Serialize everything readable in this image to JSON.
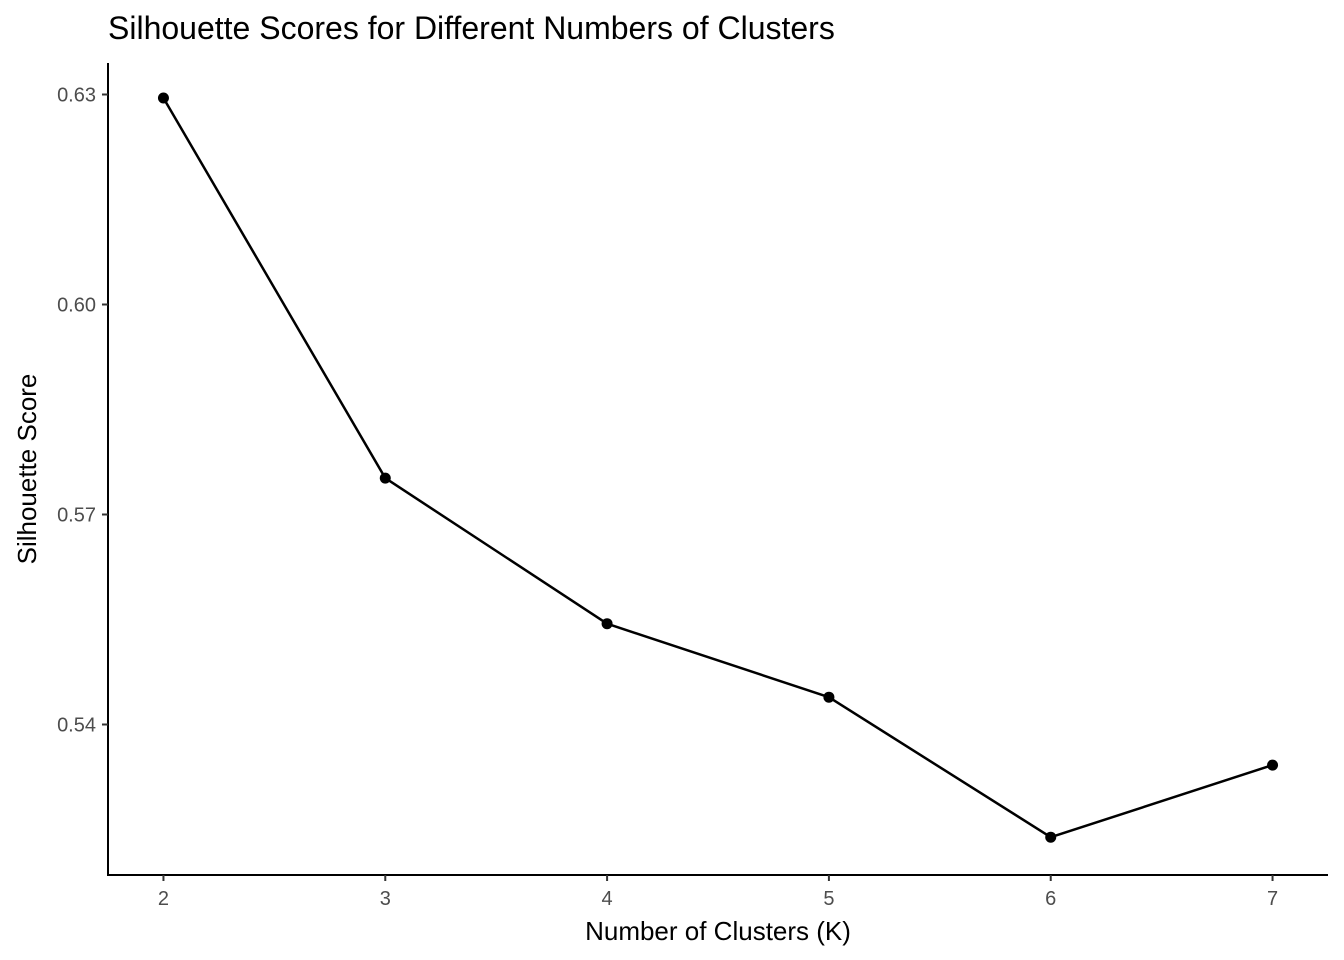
{
  "chart_data": {
    "type": "line",
    "title": "Silhouette Scores for Different Numbers of Clusters",
    "xlabel": "Number of Clusters (K)",
    "ylabel": "Silhouette Score",
    "x": [
      2,
      3,
      4,
      5,
      6,
      7
    ],
    "values": [
      0.6295,
      0.5752,
      0.5544,
      0.5439,
      0.5239,
      0.5342
    ],
    "x_ticks": [
      "2",
      "3",
      "4",
      "5",
      "6",
      "7"
    ],
    "y_ticks": [
      "0.54",
      "0.57",
      "0.60",
      "0.63"
    ],
    "xlim": [
      1.75,
      7.25
    ],
    "ylim": [
      0.5185,
      0.6345
    ],
    "grid": false,
    "line_color": "#000000",
    "point_color": "#000000"
  }
}
